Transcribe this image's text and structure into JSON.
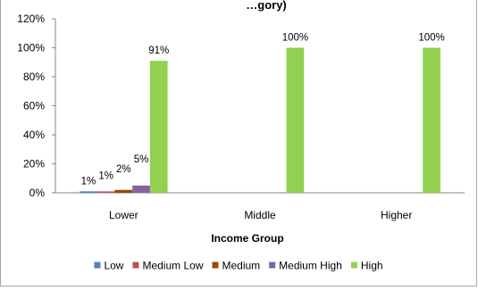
{
  "chart_data": {
    "type": "bar",
    "title": "…gory)",
    "xlabel": "Income Group",
    "ylabel": "",
    "categories": [
      "Lower",
      "Middle",
      "Higher"
    ],
    "ylim": [
      0,
      120
    ],
    "yticks": [
      "0%",
      "20%",
      "40%",
      "60%",
      "80%",
      "100%",
      "120%"
    ],
    "grid": false,
    "legend_position": "bottom",
    "series": [
      {
        "name": "Low",
        "color": "#4F81BD",
        "values": [
          1,
          0,
          0
        ],
        "labels": [
          "1%",
          "",
          ""
        ]
      },
      {
        "name": "Medium Low",
        "color": "#C0504D",
        "values": [
          1,
          0,
          0
        ],
        "labels": [
          "1%",
          "",
          ""
        ]
      },
      {
        "name": "Medium",
        "color": "#974706",
        "values": [
          2,
          0,
          0
        ],
        "labels": [
          "2%",
          "",
          ""
        ]
      },
      {
        "name": "Medium High",
        "color": "#8064A2",
        "values": [
          5,
          0,
          0
        ],
        "labels": [
          "5%",
          "",
          ""
        ]
      },
      {
        "name": "High",
        "color": "#92D050",
        "values": [
          91,
          100,
          100
        ],
        "labels": [
          "91%",
          "100%",
          "100%"
        ]
      }
    ]
  }
}
